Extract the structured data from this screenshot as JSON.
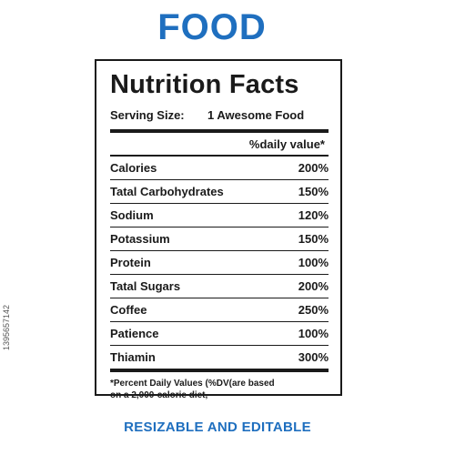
{
  "title": "FOOD",
  "label": {
    "heading": "Nutrition Facts",
    "serving_label": "Serving Size:",
    "serving_value": "1 Awesome Food",
    "column_header": "%daily value*",
    "rows": [
      {
        "name": "Calories",
        "value": "200%"
      },
      {
        "name": "Tatal Carbohydrates",
        "value": "150%"
      },
      {
        "name": "Sodium",
        "value": "120%"
      },
      {
        "name": "Potassium",
        "value": "150%"
      },
      {
        "name": "Protein",
        "value": "100%"
      },
      {
        "name": "Tatal Sugars",
        "value": "200%"
      },
      {
        "name": "Coffee",
        "value": "250%"
      },
      {
        "name": "Patience",
        "value": "100%"
      },
      {
        "name": "Thiamin",
        "value": "300%"
      }
    ],
    "footnote_line1": "*Percent Daily Values (%DV(are  based",
    "footnote_line2": "on a 2,000-calorie diet,"
  },
  "footer": "RESIZABLE AND EDITABLE",
  "side_id": "1395657142",
  "colors": {
    "accent": "#1f6fbf",
    "ink": "#1a1a1a"
  }
}
